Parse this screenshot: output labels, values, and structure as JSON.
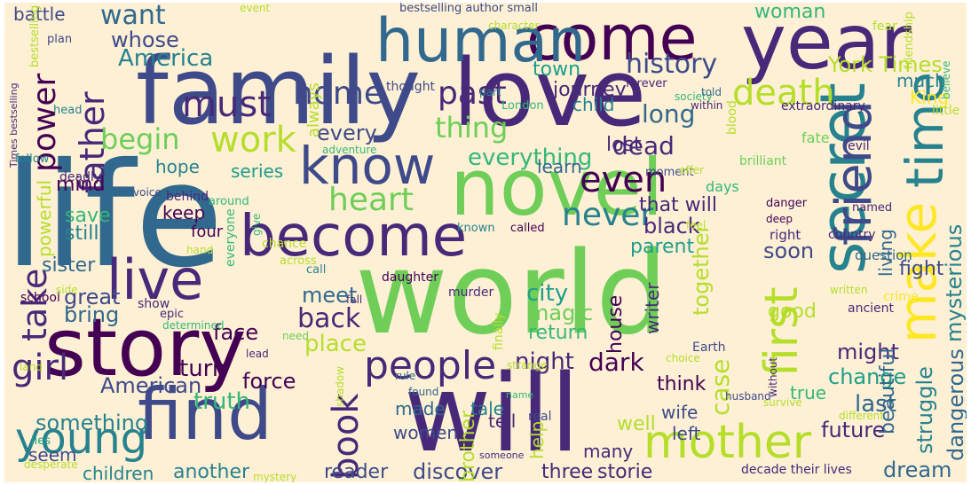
{
  "background_color": "#fdf0d5",
  "palette": [
    "#440154",
    "#482878",
    "#3e4a89",
    "#31688e",
    "#26828e",
    "#1f9e89",
    "#35b779",
    "#6ece58",
    "#b5de2b",
    "#fde725"
  ],
  "words": [
    {
      "text": "life",
      "color": "#31688e"
    },
    {
      "text": "world",
      "color": "#6ece58"
    },
    {
      "text": "family",
      "color": "#3e4a89"
    },
    {
      "text": "will",
      "color": "#482878"
    },
    {
      "text": "love",
      "color": "#482878"
    },
    {
      "text": "novel",
      "color": "#6ece58"
    },
    {
      "text": "story",
      "color": "#440154"
    },
    {
      "text": "find",
      "color": "#3e4a89"
    },
    {
      "text": "come",
      "color": "#440154"
    },
    {
      "text": "year",
      "color": "#482878"
    },
    {
      "text": "human",
      "color": "#31688e"
    },
    {
      "text": "become",
      "color": "#482878"
    },
    {
      "text": "live",
      "color": "#482878"
    },
    {
      "text": "secret",
      "color": "#26828e"
    },
    {
      "text": "make",
      "color": "#fde725"
    },
    {
      "text": "time",
      "color": "#26828e"
    },
    {
      "text": "first",
      "color": "#b5de2b"
    },
    {
      "text": "friend",
      "color": "#3e4a89"
    },
    {
      "text": "know",
      "color": "#3e4a89"
    },
    {
      "text": "mother",
      "color": "#b5de2b"
    },
    {
      "text": "young",
      "color": "#26828e"
    },
    {
      "text": "must",
      "color": "#482878"
    },
    {
      "text": "home",
      "color": "#3e4a89"
    },
    {
      "text": "people",
      "color": "#482878"
    },
    {
      "text": "heart",
      "color": "#6ece58"
    },
    {
      "text": "death",
      "color": "#b5de2b"
    },
    {
      "text": "father",
      "color": "#482878"
    },
    {
      "text": "take",
      "color": "#482878"
    },
    {
      "text": "even",
      "color": "#440154"
    },
    {
      "text": "past",
      "color": "#482878"
    },
    {
      "text": "power",
      "color": "#440154"
    },
    {
      "text": "book",
      "color": "#482878"
    },
    {
      "text": "work",
      "color": "#b5de2b"
    },
    {
      "text": "girl",
      "color": "#482878"
    },
    {
      "text": "never",
      "color": "#26828e"
    },
    {
      "text": "history",
      "color": "#3e4a89"
    },
    {
      "text": "thing",
      "color": "#6ece58"
    },
    {
      "text": "begin",
      "color": "#6ece58"
    },
    {
      "text": "want",
      "color": "#31688e"
    },
    {
      "text": "America",
      "color": "#26828e"
    },
    {
      "text": "whose",
      "color": "#3e4a89"
    },
    {
      "text": "long",
      "color": "#31688e"
    },
    {
      "text": "dead",
      "color": "#482878"
    },
    {
      "text": "everything",
      "color": "#35b779"
    },
    {
      "text": "York Times",
      "color": "#b5de2b"
    },
    {
      "text": "back",
      "color": "#482878"
    },
    {
      "text": "place",
      "color": "#b5de2b"
    },
    {
      "text": "truth",
      "color": "#35b779"
    },
    {
      "text": "American",
      "color": "#3e4a89"
    },
    {
      "text": "turn",
      "color": "#440154"
    },
    {
      "text": "force",
      "color": "#440154"
    },
    {
      "text": "night",
      "color": "#482878"
    },
    {
      "text": "dark",
      "color": "#440154"
    },
    {
      "text": "city",
      "color": "#1f9e89"
    },
    {
      "text": "meet",
      "color": "#31688e"
    },
    {
      "text": "magic",
      "color": "#6ece58"
    },
    {
      "text": "return",
      "color": "#35b779"
    },
    {
      "text": "together",
      "color": "#b5de2b"
    },
    {
      "text": "case",
      "color": "#b5de2b"
    },
    {
      "text": "good",
      "color": "#b5de2b"
    },
    {
      "text": "might",
      "color": "#482878"
    },
    {
      "text": "change",
      "color": "#1f9e89"
    },
    {
      "text": "last",
      "color": "#31688e"
    },
    {
      "text": "future",
      "color": "#482878"
    },
    {
      "text": "dream",
      "color": "#31688e"
    },
    {
      "text": "struggle",
      "color": "#26828e"
    },
    {
      "text": "dangerous",
      "color": "#31688e"
    },
    {
      "text": "beautiful",
      "color": "#31688e"
    },
    {
      "text": "fight",
      "color": "#3e4a89"
    },
    {
      "text": "mysterious",
      "color": "#26828e"
    },
    {
      "text": "living",
      "color": "#31688e"
    },
    {
      "text": "soon",
      "color": "#3e4a89"
    },
    {
      "text": "that will",
      "color": "#482878"
    },
    {
      "text": "black",
      "color": "#482878"
    },
    {
      "text": "parent",
      "color": "#1f9e89"
    },
    {
      "text": "lost",
      "color": "#482878"
    },
    {
      "text": "journey",
      "color": "#482878"
    },
    {
      "text": "learn",
      "color": "#31688e"
    },
    {
      "text": "town",
      "color": "#1f9e89"
    },
    {
      "text": "child",
      "color": "#26828e"
    },
    {
      "text": "woman",
      "color": "#35b779"
    },
    {
      "text": "much",
      "color": "#26828e"
    },
    {
      "text": "King",
      "color": "#fde725"
    },
    {
      "text": "every",
      "color": "#3e4a89"
    },
    {
      "text": "hope",
      "color": "#26828e"
    },
    {
      "text": "series",
      "color": "#1f9e89"
    },
    {
      "text": "mind",
      "color": "#440154"
    },
    {
      "text": "keep",
      "color": "#440154"
    },
    {
      "text": "save",
      "color": "#35b779"
    },
    {
      "text": "still",
      "color": "#26828e"
    },
    {
      "text": "powerful",
      "color": "#b5de2b"
    },
    {
      "text": "sister",
      "color": "#31688e"
    },
    {
      "text": "great",
      "color": "#3e4a89"
    },
    {
      "text": "bring",
      "color": "#31688e"
    },
    {
      "text": "face",
      "color": "#440154"
    },
    {
      "text": "something",
      "color": "#26828e"
    },
    {
      "text": "seem",
      "color": "#3e4a89"
    },
    {
      "text": "children",
      "color": "#26828e"
    },
    {
      "text": "another",
      "color": "#26828e"
    },
    {
      "text": "discover",
      "color": "#3e4a89"
    },
    {
      "text": "three",
      "color": "#482878"
    },
    {
      "text": "storie",
      "color": "#482878"
    },
    {
      "text": "reader",
      "color": "#3e4a89"
    },
    {
      "text": "brother",
      "color": "#b5de2b"
    },
    {
      "text": "women",
      "color": "#3e4a89"
    },
    {
      "text": "made",
      "color": "#31688e"
    },
    {
      "text": "tale",
      "color": "#26828e"
    },
    {
      "text": "tell",
      "color": "#482878"
    },
    {
      "text": "help",
      "color": "#b5de2b"
    },
    {
      "text": "many",
      "color": "#482878"
    },
    {
      "text": "well",
      "color": "#b5de2b"
    },
    {
      "text": "left",
      "color": "#3e4a89"
    },
    {
      "text": "wife",
      "color": "#3e4a89"
    },
    {
      "text": "true",
      "color": "#35b779"
    },
    {
      "text": "think",
      "color": "#440154"
    },
    {
      "text": "house",
      "color": "#440154"
    },
    {
      "text": "writer",
      "color": "#482878"
    },
    {
      "text": "battle",
      "color": "#3e4a89"
    },
    {
      "text": "bestselling author small",
      "color": "#3e4a89"
    },
    {
      "text": "character",
      "color": "#b5de2b"
    },
    {
      "text": "event",
      "color": "#b5de2b"
    },
    {
      "text": "plan",
      "color": "#3e4a89"
    },
    {
      "text": "bestselling",
      "color": "#b5de2b"
    },
    {
      "text": "always",
      "color": "#b5de2b"
    },
    {
      "text": "thought",
      "color": "#3e4a89"
    },
    {
      "text": "part",
      "color": "#26828e"
    },
    {
      "text": "London",
      "color": "#35b779"
    },
    {
      "text": "forever",
      "color": "#482878"
    },
    {
      "text": "society",
      "color": "#35b779"
    },
    {
      "text": "told",
      "color": "#31688e"
    },
    {
      "text": "within",
      "color": "#482878"
    },
    {
      "text": "blood",
      "color": "#b5de2b"
    },
    {
      "text": "extraordinary",
      "color": "#482878"
    },
    {
      "text": "fate",
      "color": "#6ece58"
    },
    {
      "text": "evil",
      "color": "#482878"
    },
    {
      "text": "friendship",
      "color": "#b5de2b"
    },
    {
      "text": "believe",
      "color": "#35b779"
    },
    {
      "text": "little",
      "color": "#b5de2b"
    },
    {
      "text": "fear",
      "color": "#b5de2b"
    },
    {
      "text": "Times bestselling",
      "color": "#482878"
    },
    {
      "text": "head",
      "color": "#26828e"
    },
    {
      "text": "follow",
      "color": "#26828e"
    },
    {
      "text": "deadly",
      "color": "#482878"
    },
    {
      "text": "adventure",
      "color": "#35b779"
    },
    {
      "text": "behind",
      "color": "#482878"
    },
    {
      "text": "voice",
      "color": "#3e4a89"
    },
    {
      "text": "around",
      "color": "#35b779"
    },
    {
      "text": "everyone",
      "color": "#35b779"
    },
    {
      "text": "give",
      "color": "#35b779"
    },
    {
      "text": "four",
      "color": "#440154"
    },
    {
      "text": "hand",
      "color": "#b5de2b"
    },
    {
      "text": "chance",
      "color": "#b5de2b"
    },
    {
      "text": "across",
      "color": "#b5de2b"
    },
    {
      "text": "call",
      "color": "#26828e"
    },
    {
      "text": "known",
      "color": "#26828e"
    },
    {
      "text": "called",
      "color": "#440154"
    },
    {
      "text": "moment",
      "color": "#3e4a89"
    },
    {
      "text": "offer",
      "color": "#b5de2b"
    },
    {
      "text": "days",
      "color": "#35b779"
    },
    {
      "text": "brilliant",
      "color": "#6ece58"
    },
    {
      "text": "feel",
      "color": "#b5de2b"
    },
    {
      "text": "danger",
      "color": "#440154"
    },
    {
      "text": "deep",
      "color": "#440154"
    },
    {
      "text": "right",
      "color": "#482878"
    },
    {
      "text": "named",
      "color": "#482878"
    },
    {
      "text": "country",
      "color": "#482878"
    },
    {
      "text": "question",
      "color": "#31688e"
    },
    {
      "text": "school",
      "color": "#440154"
    },
    {
      "text": "side",
      "color": "#b5de2b"
    },
    {
      "text": "show",
      "color": "#482878"
    },
    {
      "text": "epic",
      "color": "#482878"
    },
    {
      "text": "determined",
      "color": "#35b779"
    },
    {
      "text": "need",
      "color": "#6ece58"
    },
    {
      "text": "fall",
      "color": "#482878"
    },
    {
      "text": "daughter",
      "color": "#440154"
    },
    {
      "text": "murder",
      "color": "#482878"
    },
    {
      "text": "finally",
      "color": "#b5de2b"
    },
    {
      "text": "real",
      "color": "#3e4a89"
    },
    {
      "text": "strange",
      "color": "#b5de2b"
    },
    {
      "text": "written",
      "color": "#b5de2b"
    },
    {
      "text": "crime",
      "color": "#fde725"
    },
    {
      "text": "ancient",
      "color": "#482878"
    },
    {
      "text": "choice",
      "color": "#b5de2b"
    },
    {
      "text": "Earth",
      "color": "#3e4a89"
    },
    {
      "text": "without",
      "color": "#482878"
    },
    {
      "text": "land",
      "color": "#b5de2b"
    },
    {
      "text": "lead",
      "color": "#482878"
    },
    {
      "text": "shadow",
      "color": "#b5de2b"
    },
    {
      "text": "rule",
      "color": "#31688e"
    },
    {
      "text": "found",
      "color": "#31688e"
    },
    {
      "text": "name",
      "color": "#35b779"
    },
    {
      "text": "husband",
      "color": "#3e4a89"
    },
    {
      "text": "someone",
      "color": "#482878"
    },
    {
      "text": "survive",
      "color": "#b5de2b"
    },
    {
      "text": "different",
      "color": "#b5de2b"
    },
    {
      "text": "lies",
      "color": "#1f9e89"
    },
    {
      "text": "desperate",
      "color": "#b5de2b"
    },
    {
      "text": "mystery",
      "color": "#b5de2b"
    },
    {
      "text": "decade their lives",
      "color": "#482878"
    }
  ]
}
